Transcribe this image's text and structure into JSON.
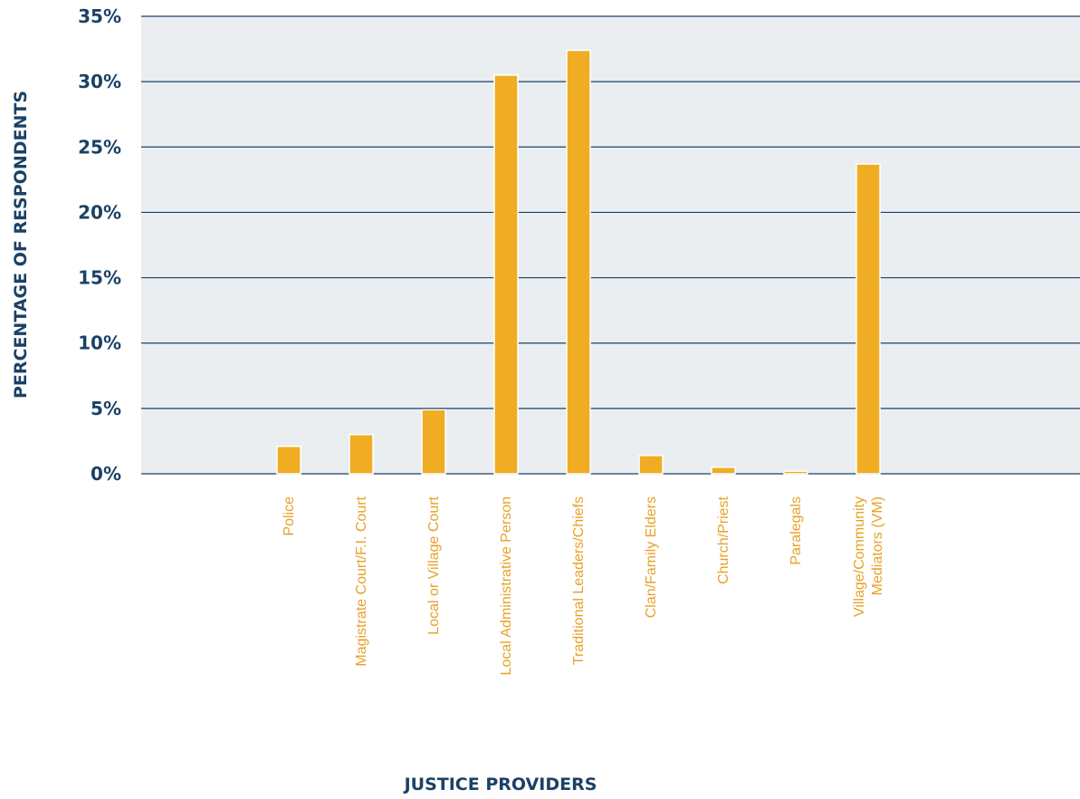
{
  "chart_data": {
    "type": "bar",
    "xlabel": "JUSTICE PROVIDERS",
    "ylabel": "PERCENTAGE OF RESPONDENTS",
    "ylim": [
      0,
      35
    ],
    "yticks": [
      "0%",
      "5%",
      "10%",
      "15%",
      "20%",
      "25%",
      "30%",
      "35%"
    ],
    "grid": true,
    "categories": [
      [
        "Police"
      ],
      [
        "Magistrate Court/F.I. Court"
      ],
      [
        "Local or Village Court"
      ],
      [
        "Local Administrative Person"
      ],
      [
        "Traditional Leaders/Chiefs"
      ],
      [
        "Clan/Family Elders"
      ],
      [
        "Church/Priest"
      ],
      [
        "Paralegals"
      ],
      [
        "Village/Community",
        "Mediators (VM)"
      ]
    ],
    "values": [
      2.1,
      3.0,
      4.9,
      30.5,
      32.4,
      1.4,
      0.5,
      0.2,
      23.7
    ],
    "colors": {
      "bar": "#f0ac22",
      "plot_background": "#ebeef0",
      "axis_text": "#1b4166",
      "category_text": "#e8a12a",
      "gridline": "#1b4166"
    }
  }
}
